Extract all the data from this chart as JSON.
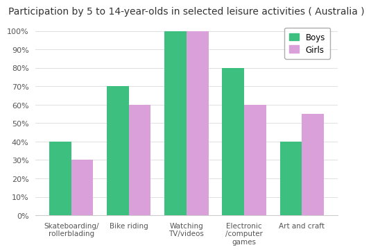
{
  "title": "Participation by 5 to 14-year-olds in selected leisure activities ( Australia )",
  "categories": [
    "Skateboarding/\nrollerblading",
    "Bike riding",
    "Watching\nTV/videos",
    "Electronic\n/computer\ngames",
    "Art and craft"
  ],
  "boys": [
    40,
    70,
    100,
    80,
    40
  ],
  "girls": [
    30,
    60,
    100,
    60,
    55
  ],
  "boys_color": "#3dbf7f",
  "girls_color": "#d9a0d9",
  "ylim": [
    0,
    105
  ],
  "yticks": [
    0,
    10,
    20,
    30,
    40,
    50,
    60,
    70,
    80,
    90,
    100
  ],
  "ytick_labels": [
    "0%",
    "10%",
    "20%",
    "30%",
    "40%",
    "50%",
    "60%",
    "70%",
    "80%",
    "90%",
    "100%"
  ],
  "background_color": "#ffffff",
  "grid_color": "#e0e0e0",
  "title_fontsize": 10,
  "bar_width": 0.38,
  "legend_labels": [
    "Boys",
    "Girls"
  ],
  "tick_fontsize": 7.5,
  "ytick_fontsize": 8
}
